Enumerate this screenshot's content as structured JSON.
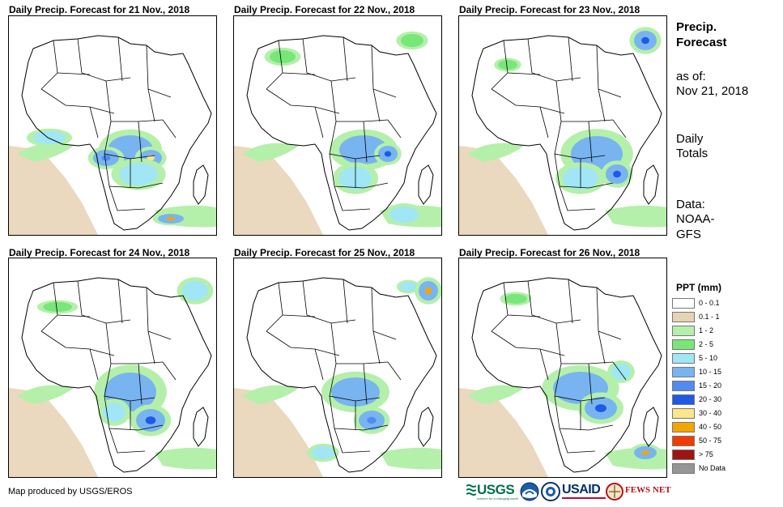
{
  "panels": [
    {
      "title": "Daily Precip. Forecast for 21 Nov., 2018",
      "seed": 21
    },
    {
      "title": "Daily Precip. Forecast for 22 Nov., 2018",
      "seed": 22
    },
    {
      "title": "Daily Precip. Forecast for 23 Nov., 2018",
      "seed": 23
    },
    {
      "title": "Daily Precip. Forecast for 24 Nov., 2018",
      "seed": 24
    },
    {
      "title": "Daily Precip. Forecast for 25 Nov., 2018",
      "seed": 25
    },
    {
      "title": "Daily Precip. Forecast for 26 Nov., 2018",
      "seed": 26
    }
  ],
  "side": {
    "heading_line1": "Precip.",
    "heading_line2": "Forecast",
    "asof_line1": "as of:",
    "asof_line2": "Nov 21, 2018",
    "totals_line1": "Daily",
    "totals_line2": "Totals",
    "data_line1": "Data:",
    "data_line2": "NOAA-",
    "data_line3": "GFS"
  },
  "legend": {
    "title": "PPT (mm)",
    "items": [
      {
        "label": "0 - 0.1",
        "color": "#ffffff"
      },
      {
        "label": "0.1 - 1",
        "color": "#e6d2b4"
      },
      {
        "label": "1 - 2",
        "color": "#b4f0aa"
      },
      {
        "label": "2 - 5",
        "color": "#78e678"
      },
      {
        "label": "5 - 10",
        "color": "#a0e6f5"
      },
      {
        "label": "10 - 15",
        "color": "#78b4f0"
      },
      {
        "label": "15 - 20",
        "color": "#508cf0"
      },
      {
        "label": "20 - 30",
        "color": "#1e5ae6"
      },
      {
        "label": "30 - 40",
        "color": "#fae68c"
      },
      {
        "label": "40 - 50",
        "color": "#f5a500"
      },
      {
        "label": "50 - 75",
        "color": "#f03c00"
      },
      {
        "label": "> 75",
        "color": "#a01414"
      },
      {
        "label": "No Data",
        "color": "#969696"
      }
    ]
  },
  "footer": "Map produced by USGS/EROS",
  "logos": {
    "usgs": "USGS",
    "usgs_tag": "science for a changing world",
    "usaid": "USAID",
    "fewsnet": "FEWS NET"
  },
  "colors": {
    "border": "#000000",
    "usgs_green": "#00704a",
    "usaid_blue": "#002f6c",
    "usaid_red": "#ba0c2f",
    "fews_red": "#b5121b"
  }
}
